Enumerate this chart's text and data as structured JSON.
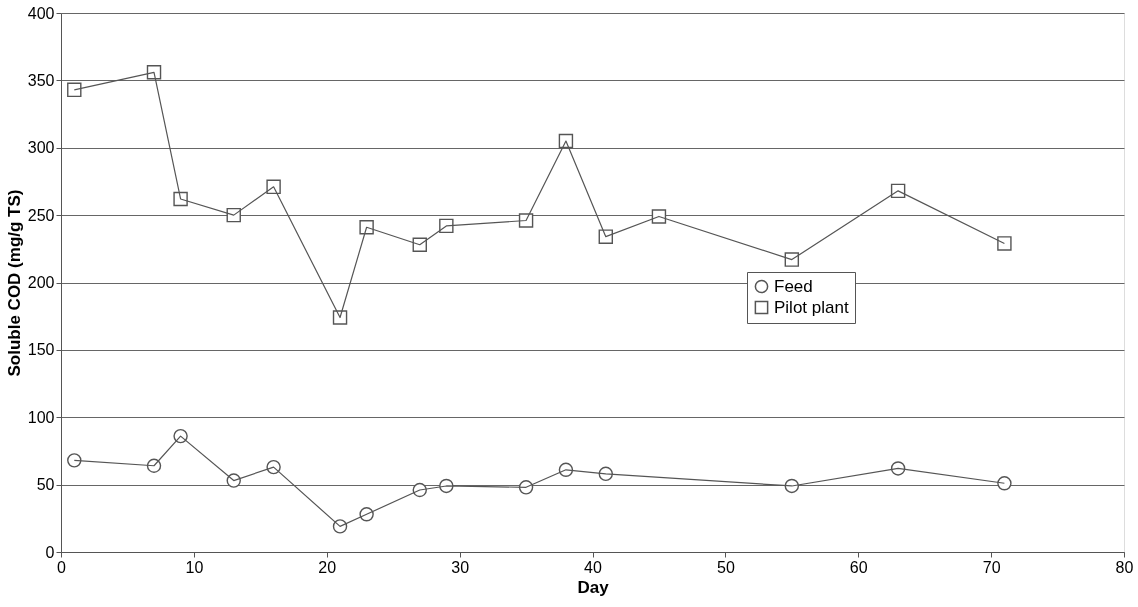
{
  "chart_data": {
    "type": "line",
    "xlabel": "Day",
    "ylabel": "Soluble COD (mg/g TS)",
    "xlim": [
      0,
      80
    ],
    "xticks": [
      0,
      10,
      20,
      30,
      40,
      50,
      60,
      70,
      80
    ],
    "ylim": [
      0,
      400
    ],
    "yticks": [
      0,
      50,
      100,
      150,
      200,
      250,
      300,
      350,
      400
    ],
    "grid": "y",
    "legend": "right",
    "line_style": "solid",
    "series": [
      {
        "name": "Feed",
        "color": "#555555",
        "marker": "circle",
        "x": [
          1,
          7,
          9,
          13,
          16,
          21,
          23,
          27,
          29,
          35,
          38,
          41,
          55,
          63,
          71
        ],
        "values": [
          68,
          64,
          86,
          53,
          63,
          19,
          28,
          46,
          49,
          48,
          61,
          58,
          49,
          62,
          51
        ]
      },
      {
        "name": "Pilot plant",
        "color": "#555555",
        "marker": "square",
        "x": [
          1,
          7,
          9,
          13,
          16,
          21,
          23,
          27,
          29,
          35,
          38,
          41,
          45,
          55,
          63,
          71
        ],
        "values": [
          343,
          356,
          262,
          250,
          271,
          174,
          241,
          228,
          242,
          246,
          305,
          234,
          249,
          217,
          268,
          229
        ]
      }
    ]
  }
}
